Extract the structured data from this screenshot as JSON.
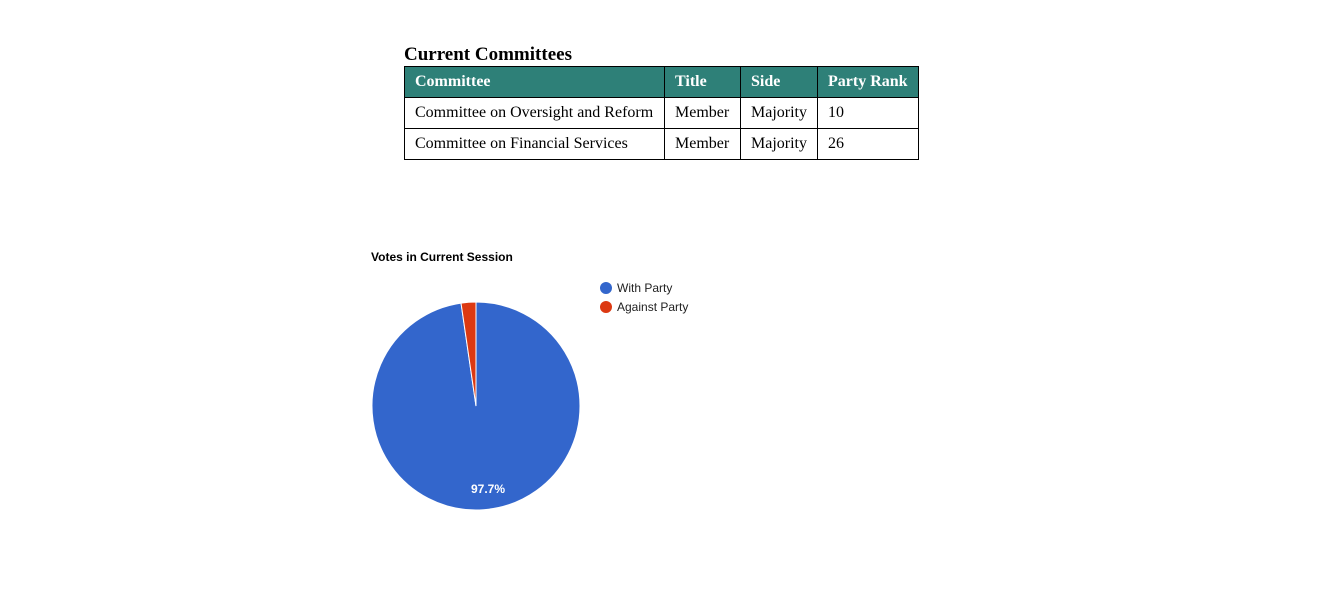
{
  "committees": {
    "heading": "Current Committees",
    "columns": [
      "Committee",
      "Title",
      "Side",
      "Party Rank"
    ],
    "rows": [
      [
        "Committee on Oversight and Reform",
        "Member",
        "Majority",
        "10"
      ],
      [
        "Committee on Financial Services",
        "Member",
        "Majority",
        "26"
      ]
    ]
  },
  "chart_data": {
    "type": "pie",
    "title": "Votes in Current Session",
    "legend_position": "right",
    "slices": [
      {
        "name": "With Party",
        "value": 97.7,
        "color": "#3366cc",
        "label": "97.7%"
      },
      {
        "name": "Against Party",
        "value": 2.3,
        "color": "#dc3912",
        "label": ""
      }
    ]
  }
}
